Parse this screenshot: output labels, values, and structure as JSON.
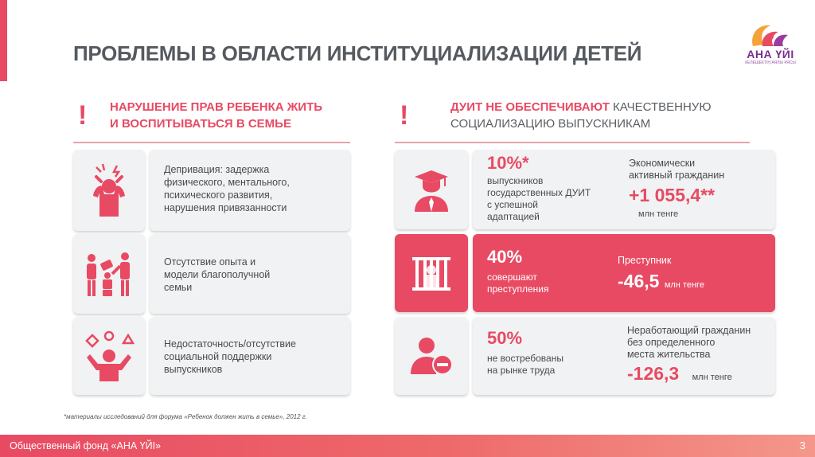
{
  "title": "ПРОБЛЕМЫ В ОБЛАСТИ ИНСТИТУЦИАЛИЗАЦИИ ДЕТЕЙ",
  "logo": {
    "name": "АНА ҮЙІ",
    "tagline": "КЕЛЕШЕКТІҢ АЯЛЫ ҰЯСЫ"
  },
  "left_section": {
    "exclamation": "!",
    "heading_line1": "НАРУШЕНИЕ ПРАВ РЕБЕНКА ЖИТЬ",
    "heading_line2": "И ВОСПИТЫВАТЬСЯ В СЕМЬЕ",
    "items": [
      {
        "icon": "stressed-person-icon",
        "text_lines": [
          "Депривация: задержка",
          "физического, ментального,",
          "психического развития,",
          "нарушения привязанности"
        ]
      },
      {
        "icon": "family-interaction-icon",
        "text_lines": [
          "Отсутствие опыта и",
          "модели благополучной",
          "семьи"
        ]
      },
      {
        "icon": "juggling-person-icon",
        "text_lines": [
          "Недостаточность/отсутствие",
          "социальной поддержки",
          "выпускников"
        ]
      }
    ]
  },
  "right_section": {
    "exclamation": "!",
    "heading_red": "ДУИТ НЕ ОБЕСПЕЧИВАЮТ",
    "heading_gray1": " КАЧЕСТВЕННУЮ",
    "heading_line2": "СОЦИАЛИЗАЦИЮ ВЫПУСКНИКАМ",
    "items": [
      {
        "icon": "graduate-icon",
        "percent": "10%*",
        "desc_lines": [
          "выпускников",
          "государственных ДУИТ",
          "с успешной",
          "адаптацией"
        ],
        "label_lines": [
          "Экономически",
          "активный гражданин"
        ],
        "value": "+1 055,4**",
        "unit": "млн тенге"
      },
      {
        "icon": "prison-icon",
        "percent": "40%",
        "desc_lines": [
          "совершают",
          "преступления"
        ],
        "label_lines": [
          "Преступник"
        ],
        "value": "-46,5",
        "unit": "млн тенге"
      },
      {
        "icon": "unemployed-person-icon",
        "percent": "50%",
        "desc_lines": [
          "не востребованы",
          "на рынке труда"
        ],
        "label_lines": [
          "Неработающий гражданин",
          "без определенного",
          "места жительства"
        ],
        "value": "-126,3",
        "unit": "млн тенге"
      }
    ]
  },
  "footnote": "*материалы исследований для форума «Ребенок должен жить в семье», 2012 г.",
  "footer": {
    "text": "Общественный фонд «АНА ҮЙІ»",
    "page": "3"
  },
  "colors": {
    "accent": "#e84a63",
    "card": "#f1f2f3",
    "text": "#4a4a4a"
  }
}
